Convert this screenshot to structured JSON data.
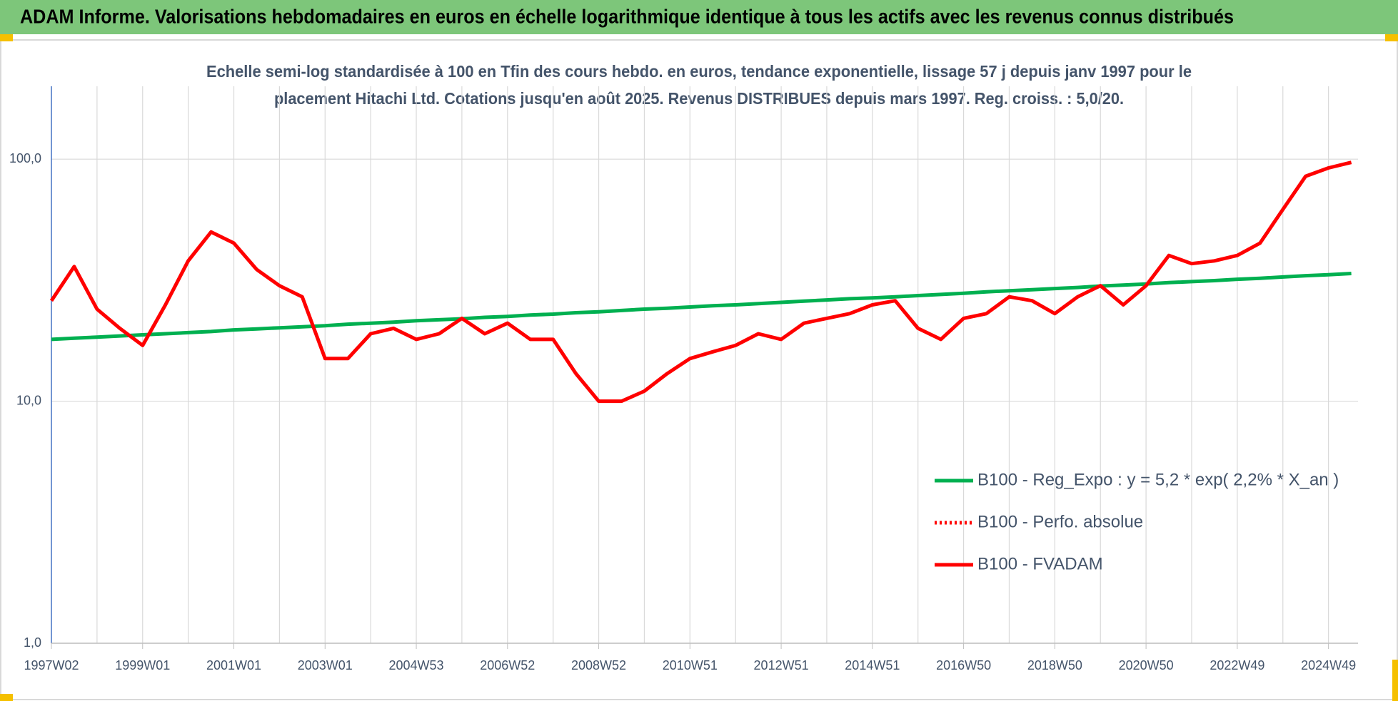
{
  "chart_data": {
    "type": "line",
    "title": "ADAM Informe. Valorisations hebdomadaires en euros en échelle logarithmique identique à tous les actifs avec les revenus connus distribués",
    "subtitle": [
      "Echelle semi-log standardisée à 100 en Tfin des cours hebdo. en euros, tendance exponentielle, lissage 57 j depuis janv 1997 pour le",
      "placement Hitachi Ltd. Cotations jusqu'en août 2025. Revenus DISTRIBUES depuis mars 1997. Reg. croiss. : 5,0/20."
    ],
    "categories": [
      "1997W02",
      null,
      null,
      null,
      "1999W01",
      null,
      null,
      null,
      "2001W01",
      null,
      null,
      null,
      "2003W01",
      null,
      null,
      null,
      "2004W53",
      null,
      null,
      null,
      "2006W52",
      null,
      null,
      null,
      "2008W52",
      null,
      null,
      null,
      "2010W51",
      null,
      null,
      null,
      "2012W51",
      null,
      null,
      null,
      "2014W51",
      null,
      null,
      null,
      "2016W50",
      null,
      null,
      null,
      "2018W50",
      null,
      null,
      null,
      "2020W50",
      null,
      null,
      null,
      "2022W49",
      null,
      null,
      null,
      "2024W49",
      null
    ],
    "series": [
      {
        "name": "B100 - Reg_Expo : y = 5,2 * exp( 2,2% *  X_an )",
        "color": "#00b050",
        "dash": "solid",
        "values": [
          18.0,
          18.2,
          18.4,
          18.6,
          18.8,
          19.0,
          19.2,
          19.4,
          19.7,
          19.9,
          20.1,
          20.3,
          20.5,
          20.8,
          21.0,
          21.2,
          21.5,
          21.7,
          21.9,
          22.2,
          22.4,
          22.7,
          22.9,
          23.2,
          23.4,
          23.7,
          24.0,
          24.2,
          24.5,
          24.8,
          25.0,
          25.3,
          25.6,
          25.9,
          26.2,
          26.5,
          26.7,
          27.0,
          27.3,
          27.6,
          27.9,
          28.3,
          28.6,
          28.9,
          29.2,
          29.5,
          29.9,
          30.2,
          30.5,
          30.9,
          31.2,
          31.5,
          31.9,
          32.2,
          32.6,
          33.0,
          33.3,
          33.7
        ]
      },
      {
        "name": "B100 - Perfo. absolue",
        "color": "#ff0000",
        "dash": "dotted",
        "values": [
          null,
          null,
          null,
          null,
          null,
          null,
          null,
          null,
          null,
          null,
          null,
          null,
          null,
          null,
          null,
          null,
          null,
          null,
          null,
          null,
          null,
          null,
          null,
          null,
          null,
          null,
          null,
          null,
          null,
          null,
          null,
          null,
          null,
          null,
          null,
          null,
          null,
          null,
          null,
          null,
          null,
          null,
          null,
          null,
          null,
          null,
          null,
          null,
          null,
          null,
          null,
          null,
          null,
          null,
          null,
          null,
          null,
          null
        ]
      },
      {
        "name": "B100 - FVADAM",
        "color": "#ff0000",
        "dash": "solid",
        "values": [
          26,
          36,
          24,
          20,
          17,
          25,
          38,
          50,
          45,
          35,
          30,
          27,
          15,
          15,
          19,
          20,
          18,
          19,
          22,
          19,
          21,
          18,
          18,
          13,
          10,
          10,
          11,
          13,
          15,
          16,
          17,
          19,
          18,
          21,
          22,
          23,
          25,
          26,
          20,
          18,
          22,
          23,
          27,
          26,
          23,
          27,
          30,
          25,
          30,
          40,
          37,
          38,
          40,
          45,
          62,
          85,
          92,
          97
        ]
      }
    ],
    "log_scale": true,
    "ylim": [
      1,
      200
    ],
    "yticks": [
      {
        "value": 1,
        "label": "1,0"
      },
      {
        "value": 10,
        "label": "10,0"
      },
      {
        "value": 100,
        "label": "100,0"
      }
    ],
    "grid": true,
    "legend": "right"
  }
}
